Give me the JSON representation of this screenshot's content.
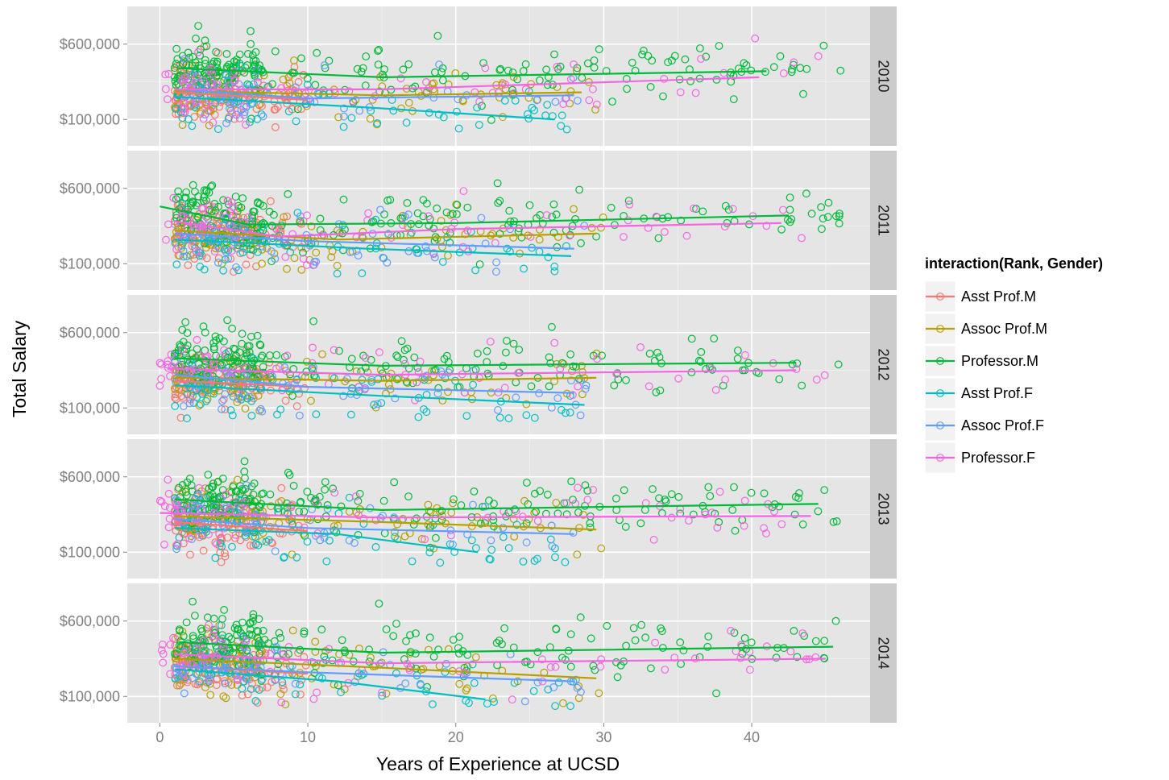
{
  "chart_data": {
    "type": "scatter",
    "xlabel": "Years of Experience at UCSD",
    "ylabel": "Total Salary",
    "x_ticks": [
      0,
      10,
      20,
      30,
      40
    ],
    "x_tick_labels": [
      "0",
      "10",
      "20",
      "30",
      "40"
    ],
    "xlim": [
      -2.2,
      48
    ],
    "y_ticks": [
      100000,
      600000
    ],
    "y_tick_labels": [
      "$100,000",
      "$600,000"
    ],
    "ylim": [
      -75000,
      850000
    ],
    "grid": true,
    "facet_by": "Year",
    "facets": [
      "2010",
      "2011",
      "2012",
      "2013",
      "2014"
    ],
    "legend": {
      "title": "interaction(Rank, Gender)",
      "placement": "right",
      "entries": [
        {
          "name": "Asst Prof.M",
          "color": "#F8766D"
        },
        {
          "name": "Assoc Prof.M",
          "color": "#B79F00"
        },
        {
          "name": "Professor.M",
          "color": "#00BA38"
        },
        {
          "name": "Asst Prof.F",
          "color": "#00BFC4"
        },
        {
          "name": "Assoc Prof.F",
          "color": "#619CFF"
        },
        {
          "name": "Professor.F",
          "color": "#F564E3"
        }
      ]
    },
    "x_ranges": {
      "Asst Prof.M": [
        1,
        10
      ],
      "Assoc Prof.M": [
        1,
        30
      ],
      "Professor.M": [
        1,
        46
      ],
      "Asst Prof.F": [
        1,
        28
      ],
      "Assoc Prof.F": [
        1,
        29
      ],
      "Professor.F": [
        0,
        45
      ]
    },
    "trend_lines": {
      "2010": {
        "Asst Prof.M": [
          [
            1,
            280000
          ],
          [
            10,
            230000
          ]
        ],
        "Assoc Prof.M": [
          [
            1,
            290000
          ],
          [
            15,
            260000
          ],
          [
            28.5,
            280000
          ]
        ],
        "Professor.M": [
          [
            1.2,
            440000
          ],
          [
            15,
            380000
          ],
          [
            41,
            420000
          ]
        ],
        "Asst Prof.F": [
          [
            1,
            250000
          ],
          [
            14,
            180000
          ],
          [
            26.7,
            100000
          ]
        ],
        "Assoc Prof.F": [
          [
            1,
            300000
          ],
          [
            10,
            240000
          ],
          [
            28,
            260000
          ]
        ],
        "Professor.F": [
          [
            1,
            300000
          ],
          [
            15,
            300000
          ],
          [
            40.5,
            380000
          ]
        ]
      },
      "2011": {
        "Asst Prof.M": [
          [
            1,
            300000
          ],
          [
            10,
            250000
          ]
        ],
        "Assoc Prof.M": [
          [
            1,
            320000
          ],
          [
            12,
            260000
          ],
          [
            29.5,
            300000
          ]
        ],
        "Professor.M": [
          [
            0,
            480000
          ],
          [
            6,
            360000
          ],
          [
            20,
            370000
          ],
          [
            42.5,
            420000
          ]
        ],
        "Asst Prof.F": [
          [
            1,
            260000
          ],
          [
            14,
            200000
          ],
          [
            27.8,
            150000
          ]
        ],
        "Assoc Prof.F": [
          [
            1,
            300000
          ],
          [
            10,
            250000
          ],
          [
            28,
            200000
          ]
        ],
        "Professor.F": [
          [
            1,
            380000
          ],
          [
            8,
            280000
          ],
          [
            20,
            330000
          ],
          [
            42,
            370000
          ]
        ]
      },
      "2012": {
        "Asst Prof.M": [
          [
            1,
            280000
          ],
          [
            10,
            240000
          ]
        ],
        "Assoc Prof.M": [
          [
            1,
            300000
          ],
          [
            15,
            280000
          ],
          [
            29.5,
            300000
          ]
        ],
        "Professor.M": [
          [
            1,
            430000
          ],
          [
            15,
            380000
          ],
          [
            43,
            400000
          ]
        ],
        "Asst Prof.F": [
          [
            1,
            250000
          ],
          [
            15,
            180000
          ],
          [
            28.7,
            120000
          ]
        ],
        "Assoc Prof.F": [
          [
            1,
            320000
          ],
          [
            10,
            240000
          ],
          [
            28,
            200000
          ]
        ],
        "Professor.F": [
          [
            0.5,
            360000
          ],
          [
            15,
            320000
          ],
          [
            43,
            350000
          ]
        ]
      },
      "2013": {
        "Asst Prof.M": [
          [
            1,
            300000
          ],
          [
            10,
            240000
          ]
        ],
        "Assoc Prof.M": [
          [
            1,
            340000
          ],
          [
            15,
            300000
          ],
          [
            29.5,
            250000
          ]
        ],
        "Professor.M": [
          [
            1,
            450000
          ],
          [
            15,
            380000
          ],
          [
            44.5,
            420000
          ]
        ],
        "Asst Prof.F": [
          [
            1,
            260000
          ],
          [
            12,
            220000
          ],
          [
            21.5,
            100000
          ]
        ],
        "Assoc Prof.F": [
          [
            1,
            320000
          ],
          [
            10,
            260000
          ],
          [
            28,
            220000
          ]
        ],
        "Professor.F": [
          [
            0,
            360000
          ],
          [
            15,
            330000
          ],
          [
            44,
            340000
          ]
        ]
      },
      "2014": {
        "Asst Prof.M": [
          [
            1,
            300000
          ],
          [
            10,
            250000
          ]
        ],
        "Assoc Prof.M": [
          [
            1,
            350000
          ],
          [
            15,
            290000
          ],
          [
            29.5,
            220000
          ]
        ],
        "Professor.M": [
          [
            1.3,
            460000
          ],
          [
            15,
            390000
          ],
          [
            45.5,
            430000
          ]
        ],
        "Asst Prof.F": [
          [
            1,
            280000
          ],
          [
            12,
            200000
          ],
          [
            22,
            80000
          ]
        ],
        "Assoc Prof.F": [
          [
            1,
            300000
          ],
          [
            10,
            260000
          ],
          [
            28,
            200000
          ]
        ],
        "Professor.F": [
          [
            1,
            380000
          ],
          [
            15,
            320000
          ],
          [
            45,
            350000
          ]
        ]
      }
    }
  }
}
